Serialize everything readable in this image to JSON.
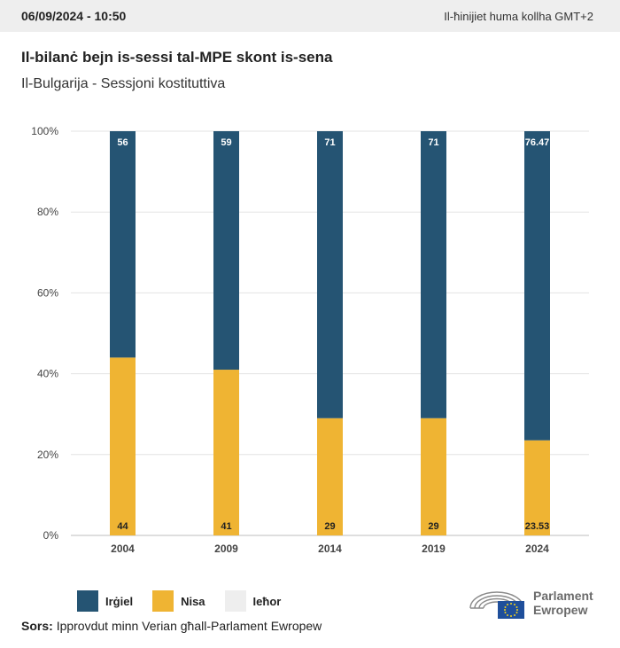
{
  "header": {
    "date": "06/09/2024 - 10:50",
    "timezone_note": "Il-ħinijiet huma kollha GMT+2"
  },
  "title": "Il-bilanċ bejn is-sessi tal-MPE skont is-sena",
  "subtitle": "Il-Bulgarija - Sessjoni kostituttiva",
  "colors": {
    "men": "#255473",
    "women": "#efb433",
    "other": "#eeeeee",
    "grid": "#e3e3e3",
    "axis_text": "#444444"
  },
  "chart_data": {
    "type": "bar",
    "stacked": true,
    "categories": [
      "2004",
      "2009",
      "2014",
      "2019",
      "2024"
    ],
    "series": [
      {
        "name": "Irġiel",
        "values": [
          56,
          59,
          71,
          71,
          76.47
        ]
      },
      {
        "name": "Nisa",
        "values": [
          44,
          41,
          29,
          29,
          23.53
        ]
      },
      {
        "name": "Ieħor",
        "values": [
          0,
          0,
          0,
          0,
          0
        ]
      }
    ],
    "yticks": [
      "0%",
      "20%",
      "40%",
      "60%",
      "80%",
      "100%"
    ],
    "ylim": [
      0,
      100
    ],
    "grid": true,
    "legend_position": "bottom-left"
  },
  "legend": {
    "men": "Irġiel",
    "women": "Nisa",
    "other": "Ieħor"
  },
  "source": {
    "label": "Sors:",
    "text": "Ipprovdut minn Verian għall-Parlament Ewropew"
  },
  "logo": {
    "line1": "Parlament",
    "line2": "Ewropew"
  }
}
